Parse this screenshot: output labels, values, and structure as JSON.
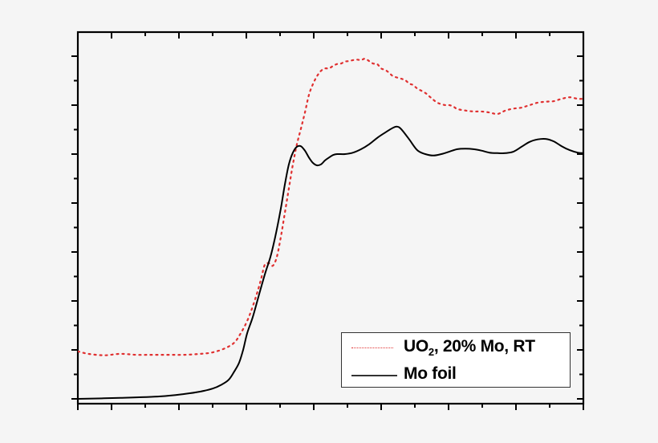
{
  "chart_data": {
    "type": "line",
    "title": "",
    "xlabel": "",
    "ylabel": "",
    "x_units": "relative (pixel offset from left axis, 0-630; no tick labels shown)",
    "y_units": "relative (major tick intervals; no tick labels shown)",
    "xlim": [
      0,
      630
    ],
    "ylim": [
      -0.1,
      7.49
    ],
    "grid": false,
    "legend_position": "lower right",
    "x_major_ticks": [
      43,
      127,
      211,
      295,
      379,
      463,
      546,
      630
    ],
    "y_major_ticks": [
      0,
      1,
      2,
      3,
      4,
      5,
      6,
      7
    ],
    "series": [
      {
        "name": "UO2, 20% Mo, RT",
        "style": "dotted",
        "color": "#e03030",
        "x": [
          0,
          13,
          33,
          53,
          73,
          93,
          113,
          133,
          153,
          168,
          183,
          195,
          203,
          211,
          218,
          225,
          229,
          233,
          238,
          243,
          248,
          253,
          258,
          263,
          268,
          273,
          278,
          283,
          288,
          293,
          298,
          303,
          308,
          313,
          318,
          323,
          328,
          333,
          338,
          343,
          348,
          353,
          358,
          363,
          368,
          373,
          378,
          383,
          388,
          393,
          403,
          408,
          413,
          418,
          423,
          433,
          438,
          443,
          448,
          453,
          458,
          463,
          468,
          473,
          483,
          493,
          503,
          513,
          523,
          533,
          543,
          553,
          563,
          573,
          583,
          593,
          603,
          613,
          623,
          630
        ],
        "y": [
          0.97,
          0.92,
          0.89,
          0.92,
          0.9,
          0.9,
          0.9,
          0.9,
          0.92,
          0.95,
          1.03,
          1.15,
          1.34,
          1.59,
          1.89,
          2.25,
          2.49,
          2.74,
          2.77,
          2.72,
          2.9,
          3.31,
          3.8,
          4.3,
          4.79,
          5.2,
          5.52,
          5.85,
          6.21,
          6.43,
          6.59,
          6.7,
          6.75,
          6.75,
          6.8,
          6.84,
          6.85,
          6.89,
          6.9,
          6.92,
          6.93,
          6.92,
          6.95,
          6.9,
          6.85,
          6.84,
          6.75,
          6.72,
          6.66,
          6.59,
          6.54,
          6.51,
          6.44,
          6.41,
          6.34,
          6.25,
          6.18,
          6.11,
          6.05,
          6.02,
          6.0,
          6.0,
          5.97,
          5.92,
          5.89,
          5.87,
          5.87,
          5.85,
          5.82,
          5.89,
          5.93,
          5.95,
          6.0,
          6.05,
          6.07,
          6.08,
          6.13,
          6.16,
          6.13,
          6.13
        ]
      },
      {
        "name": "Mo foil",
        "style": "solid",
        "color": "#000000",
        "x": [
          0,
          53,
          103,
          133,
          153,
          168,
          178,
          188,
          195,
          201,
          206,
          211,
          218,
          225,
          233,
          240,
          246,
          253,
          258,
          263,
          268,
          273,
          278,
          283,
          288,
          293,
          298,
          303,
          308,
          313,
          318,
          323,
          333,
          343,
          353,
          363,
          373,
          383,
          393,
          398,
          403,
          413,
          423,
          433,
          443,
          453,
          463,
          473,
          483,
          493,
          503,
          513,
          523,
          533,
          543,
          553,
          563,
          573,
          583,
          593,
          603,
          613,
          623,
          630
        ],
        "y": [
          0.0,
          0.02,
          0.05,
          0.1,
          0.15,
          0.21,
          0.28,
          0.39,
          0.56,
          0.74,
          1.0,
          1.34,
          1.67,
          2.08,
          2.54,
          2.9,
          3.31,
          3.89,
          4.38,
          4.79,
          5.03,
          5.15,
          5.16,
          5.07,
          4.93,
          4.82,
          4.77,
          4.79,
          4.87,
          4.93,
          4.98,
          5.0,
          5.0,
          5.03,
          5.1,
          5.2,
          5.33,
          5.44,
          5.54,
          5.56,
          5.51,
          5.3,
          5.08,
          5.0,
          4.97,
          5.0,
          5.05,
          5.1,
          5.11,
          5.1,
          5.07,
          5.03,
          5.02,
          5.02,
          5.05,
          5.15,
          5.25,
          5.3,
          5.31,
          5.26,
          5.16,
          5.08,
          5.03,
          5.02
        ]
      }
    ]
  },
  "legend": {
    "entries": [
      {
        "label_main": "UO",
        "label_sub": "2",
        "label_rest": ", 20% Mo, RT",
        "style": "dotted",
        "color": "#e03030"
      },
      {
        "label_main": "Mo foil",
        "style": "solid",
        "color": "#000000"
      }
    ]
  },
  "colors": {
    "background": "#f5f5f5",
    "axis": "#000000",
    "legend_bg": "#ffffff",
    "legend_border": "#333333"
  }
}
